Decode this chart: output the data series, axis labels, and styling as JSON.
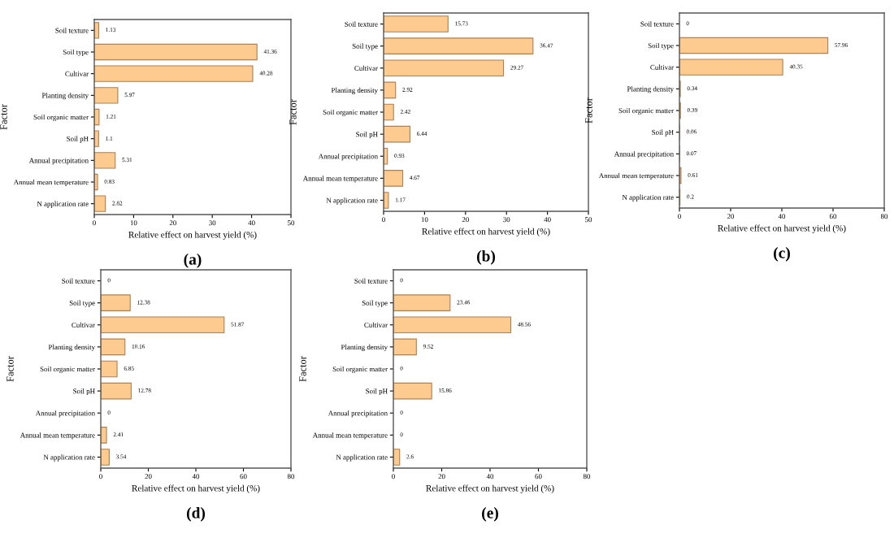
{
  "chart_data": [
    {
      "type": "bar",
      "orientation": "horizontal",
      "ylabel": "Factor",
      "xlabel": "Relative effect on harvest yield (%)",
      "annotations": [
        "(a)"
      ],
      "categories": [
        "Soil texture",
        "Soil type",
        "Cultivar",
        "Planting density",
        "Soil organic matter",
        "Soil pH",
        "Annual precipitation",
        "Annual mean temperature",
        "N application rate"
      ],
      "values": [
        1.13,
        41.36,
        40.28,
        5.97,
        1.21,
        1.1,
        5.31,
        0.83,
        2.82
      ],
      "color": "#fdcb8f",
      "xlim": [
        0,
        50
      ],
      "xticks": [
        0,
        10,
        20,
        30,
        40,
        50
      ],
      "data_labels": true
    },
    {
      "type": "bar",
      "orientation": "horizontal",
      "ylabel": "Factor",
      "xlabel": "Relative effect on harvest yield (%)",
      "annotations": [
        "(b)"
      ],
      "categories": [
        "Soil texture",
        "Soil type",
        "Cultivar",
        "Planting density",
        "Soil organic matter",
        "Soil pH",
        "Annual precipitation",
        "Annual mean temperature",
        "N application rate"
      ],
      "values": [
        15.73,
        36.47,
        29.27,
        2.92,
        2.42,
        6.44,
        0.93,
        4.67,
        1.17
      ],
      "color": "#fdcb8f",
      "xlim": [
        0,
        50
      ],
      "xticks": [
        0,
        10,
        20,
        30,
        40,
        50
      ],
      "data_labels": true
    },
    {
      "type": "bar",
      "orientation": "horizontal",
      "ylabel": "Factor",
      "xlabel": "Relative effect on harvest yield (%)",
      "annotations": [
        "(c)"
      ],
      "categories": [
        "Soil texture",
        "Soil type",
        "Cultivar",
        "Planting density",
        "Soil organic matter",
        "Soil pH",
        "Annual precipitation",
        "Annual mean temperature",
        "N application rate"
      ],
      "values": [
        0,
        57.96,
        40.35,
        0.34,
        0.39,
        0.06,
        0.07,
        0.61,
        0.2
      ],
      "color": "#fdcb8f",
      "xlim": [
        0,
        80
      ],
      "xticks": [
        0,
        20,
        40,
        60,
        80
      ],
      "data_labels": true
    },
    {
      "type": "bar",
      "orientation": "horizontal",
      "ylabel": "Factor",
      "xlabel": "Relative effect on harvest yield (%)",
      "annotations": [
        "(d)"
      ],
      "categories": [
        "Soil texture",
        "Soil type",
        "Cultivar",
        "Planting density",
        "Soil organic matter",
        "Soil pH",
        "Annual precipitation",
        "Annual mean temperature",
        "N application rate"
      ],
      "values": [
        0,
        12.38,
        51.87,
        10.16,
        6.85,
        12.78,
        0,
        2.41,
        3.54
      ],
      "color": "#fdcb8f",
      "xlim": [
        0,
        80
      ],
      "xticks": [
        0,
        20,
        40,
        60,
        80
      ],
      "data_labels": true
    },
    {
      "type": "bar",
      "orientation": "horizontal",
      "ylabel": "Factor",
      "xlabel": "Relative effect on harvest yield (%)",
      "annotations": [
        "(e)"
      ],
      "categories": [
        "Soil texture",
        "Soil type",
        "Cultivar",
        "Planting density",
        "Soil organic matter",
        "Soil pH",
        "Annual precipitation",
        "Annual mean temperature",
        "N application rate"
      ],
      "values": [
        0,
        23.46,
        48.56,
        9.52,
        0,
        15.86,
        0,
        0,
        2.6
      ],
      "color": "#fdcb8f",
      "xlim": [
        0,
        80
      ],
      "xticks": [
        0,
        20,
        40,
        60,
        80
      ],
      "data_labels": true
    }
  ]
}
